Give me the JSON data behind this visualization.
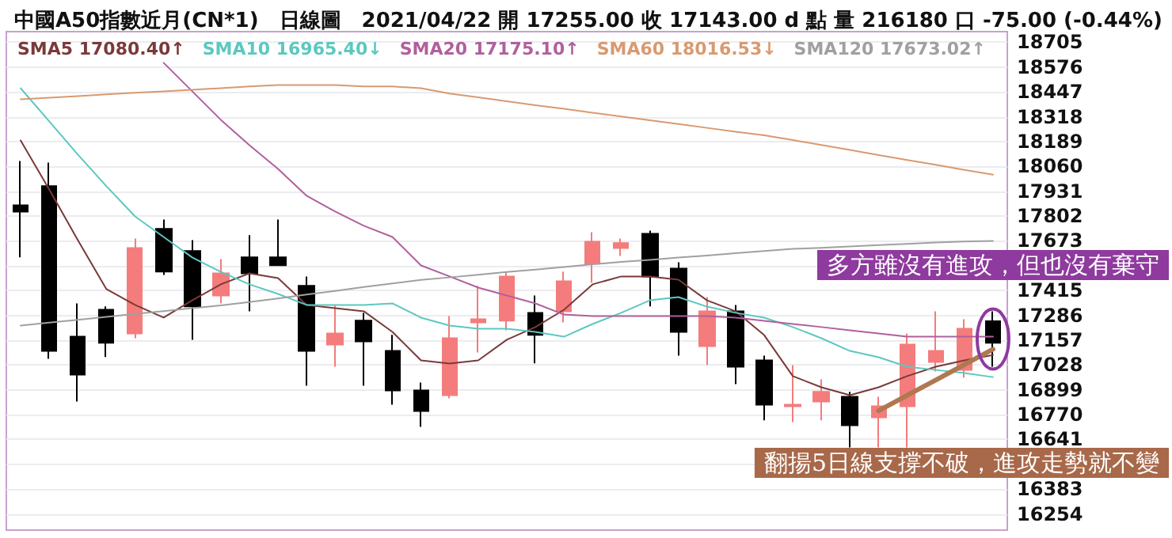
{
  "chart_data": {
    "type": "candlestick",
    "title": "中國A50指數近月(CN*1)　日線圖　2021/04/22 開 17255.00 收 17143.00 d 點 量 216180 口 -75.00 (-0.44%)",
    "categories": [
      null,
      null,
      null,
      null,
      null,
      null,
      null,
      null,
      null,
      null,
      null,
      null,
      null,
      null,
      null,
      null,
      null,
      null,
      null,
      null,
      null,
      null,
      null,
      null,
      null,
      null,
      null,
      null,
      null,
      null,
      null,
      null,
      null,
      null,
      null
    ],
    "ohlc": [
      [
        17858,
        18088,
        17587,
        17825
      ],
      [
        17957,
        18080,
        17060,
        17101
      ],
      [
        17175,
        17348,
        16838,
        16978
      ],
      [
        17315,
        17332,
        17069,
        17143
      ],
      [
        17192,
        17685,
        17167,
        17636
      ],
      [
        17735,
        17784,
        17496,
        17513
      ],
      [
        17620,
        17677,
        17159,
        17332
      ],
      [
        17389,
        17578,
        17348,
        17504
      ],
      [
        17587,
        17702,
        17307,
        17504
      ],
      [
        17587,
        17784,
        17546,
        17546
      ],
      [
        17439,
        17488,
        16920,
        17101
      ],
      [
        17134,
        17340,
        17019,
        17192
      ],
      [
        17258,
        17299,
        16920,
        17151
      ],
      [
        17101,
        17184,
        16822,
        16896
      ],
      [
        16896,
        16937,
        16707,
        16789
      ],
      [
        16871,
        17282,
        16855,
        17167
      ],
      [
        17249,
        17439,
        17093,
        17266
      ],
      [
        17258,
        17513,
        17208,
        17488
      ],
      [
        17299,
        17389,
        17036,
        17184
      ],
      [
        17307,
        17513,
        17249,
        17463
      ],
      [
        17554,
        17718,
        17455,
        17669
      ],
      [
        17636,
        17685,
        17595,
        17661
      ],
      [
        17710,
        17726,
        17332,
        17488
      ],
      [
        17529,
        17562,
        17077,
        17200
      ],
      [
        17126,
        17381,
        17027,
        17307
      ],
      [
        17307,
        17340,
        16929,
        17019
      ],
      [
        17052,
        17077,
        16740,
        16822
      ],
      [
        16813,
        17027,
        16731,
        16822
      ],
      [
        16838,
        16953,
        16740,
        16888
      ],
      [
        16863,
        16888,
        16600,
        16715
      ],
      [
        16756,
        16863,
        16600,
        16813
      ],
      [
        16813,
        17192,
        16600,
        17134
      ],
      [
        17044,
        17307,
        16994,
        17101
      ],
      [
        17003,
        17266,
        16962,
        17216
      ],
      [
        17255,
        17307,
        17019,
        17143
      ]
    ],
    "colors": [
      "#000000",
      "#000000",
      "#000000",
      "#000000",
      "#f47c7c",
      "#000000",
      "#000000",
      "#f47c7c",
      "#000000",
      "#000000",
      "#000000",
      "#f47c7c",
      "#000000",
      "#000000",
      "#000000",
      "#f47c7c",
      "#f47c7c",
      "#f47c7c",
      "#000000",
      "#f47c7c",
      "#f47c7c",
      "#f47c7c",
      "#000000",
      "#000000",
      "#f47c7c",
      "#000000",
      "#000000",
      "#f47c7c",
      "#f47c7c",
      "#000000",
      "#f47c7c",
      "#f47c7c",
      "#f47c7c",
      "#f47c7c",
      "#000000"
    ],
    "series": [
      {
        "type": "line",
        "name": "SMA5 17080.40↑",
        "color": "#7a3a3a",
        "values": [
          18195,
          17940,
          17677,
          17422,
          17340,
          17274,
          17364,
          17447,
          17504,
          17479,
          17340,
          17323,
          17307,
          17200,
          17052,
          17035,
          17052,
          17159,
          17225,
          17315,
          17447,
          17488,
          17488,
          17471,
          17364,
          17307,
          17183,
          16970,
          16912,
          16871,
          16912,
          16970,
          17019,
          17052,
          17080
        ]
      },
      {
        "type": "line",
        "name": "SMA10 16965.40↓",
        "color": "#5cc8c0",
        "values": [
          18466,
          18294,
          18121,
          17957,
          17800,
          17693,
          17587,
          17512,
          17447,
          17397,
          17340,
          17340,
          17340,
          17348,
          17274,
          17233,
          17216,
          17216,
          17200,
          17175,
          17241,
          17299,
          17364,
          17381,
          17331,
          17299,
          17274,
          17225,
          17167,
          17101,
          17068,
          17019,
          17002,
          16986,
          16965
        ]
      },
      {
        "type": "line",
        "name": "SMA20 17175.10↑",
        "color": "#b0609c",
        "values": [
          null,
          null,
          null,
          null,
          null,
          18598,
          18450,
          18302,
          18170,
          18047,
          17907,
          17825,
          17751,
          17693,
          17545,
          17488,
          17430,
          17389,
          17348,
          17290,
          17282,
          17282,
          17282,
          17282,
          17282,
          17274,
          17257,
          17241,
          17225,
          17208,
          17192,
          17175,
          17175,
          17175,
          17175
        ]
      },
      {
        "type": "line",
        "name": "SMA60 18016.53↓",
        "color": "#d89a70",
        "values": [
          18409,
          18417,
          18425,
          18434,
          18442,
          18450,
          18458,
          18466,
          18475,
          18483,
          18483,
          18483,
          18475,
          18475,
          18466,
          18438,
          18419,
          18398,
          18378,
          18359,
          18339,
          18319,
          18300,
          18280,
          18260,
          18240,
          18221,
          18197,
          18171,
          18145,
          18119,
          18093,
          18068,
          18042,
          18017
        ]
      },
      {
        "type": "line",
        "name": "SMA120 17673.02↑",
        "color": "#a0a0a0",
        "values": [
          17233,
          17248,
          17263,
          17278,
          17293,
          17308,
          17323,
          17338,
          17355,
          17374,
          17394,
          17413,
          17433,
          17452,
          17470,
          17483,
          17497,
          17511,
          17524,
          17537,
          17551,
          17564,
          17574,
          17586,
          17597,
          17609,
          17620,
          17631,
          17637,
          17644,
          17651,
          17657,
          17664,
          17670,
          17673
        ]
      },
      {
        "type": "line",
        "color": "#b07850",
        "values": [
          null,
          null,
          null,
          null,
          null,
          null,
          null,
          null,
          null,
          null,
          null,
          null,
          null,
          null,
          null,
          null,
          null,
          null,
          null,
          null,
          null,
          null,
          null,
          null,
          null,
          null,
          null,
          null,
          null,
          null,
          16790,
          16870,
          16950,
          17030,
          17110
        ]
      }
    ],
    "ylim": [
      16170,
      18760
    ],
    "yticks": [
      16254,
      16383,
      {
        "value": 16512,
        "label": null
      },
      16641,
      16770,
      16899,
      17028,
      17157,
      17286,
      17415,
      {
        "value": 17544,
        "label": null
      },
      17673,
      17802,
      17931,
      18060,
      18189,
      18318,
      18447,
      18576,
      18705
    ],
    "annotations": [
      "多方雖沒有進攻，但也沒有棄守",
      "翻揚5日線支撐不破，進攻走勢就不變"
    ],
    "grid": "y",
    "legend": "top left",
    "marker": "none",
    "tick_labels": "y"
  }
}
